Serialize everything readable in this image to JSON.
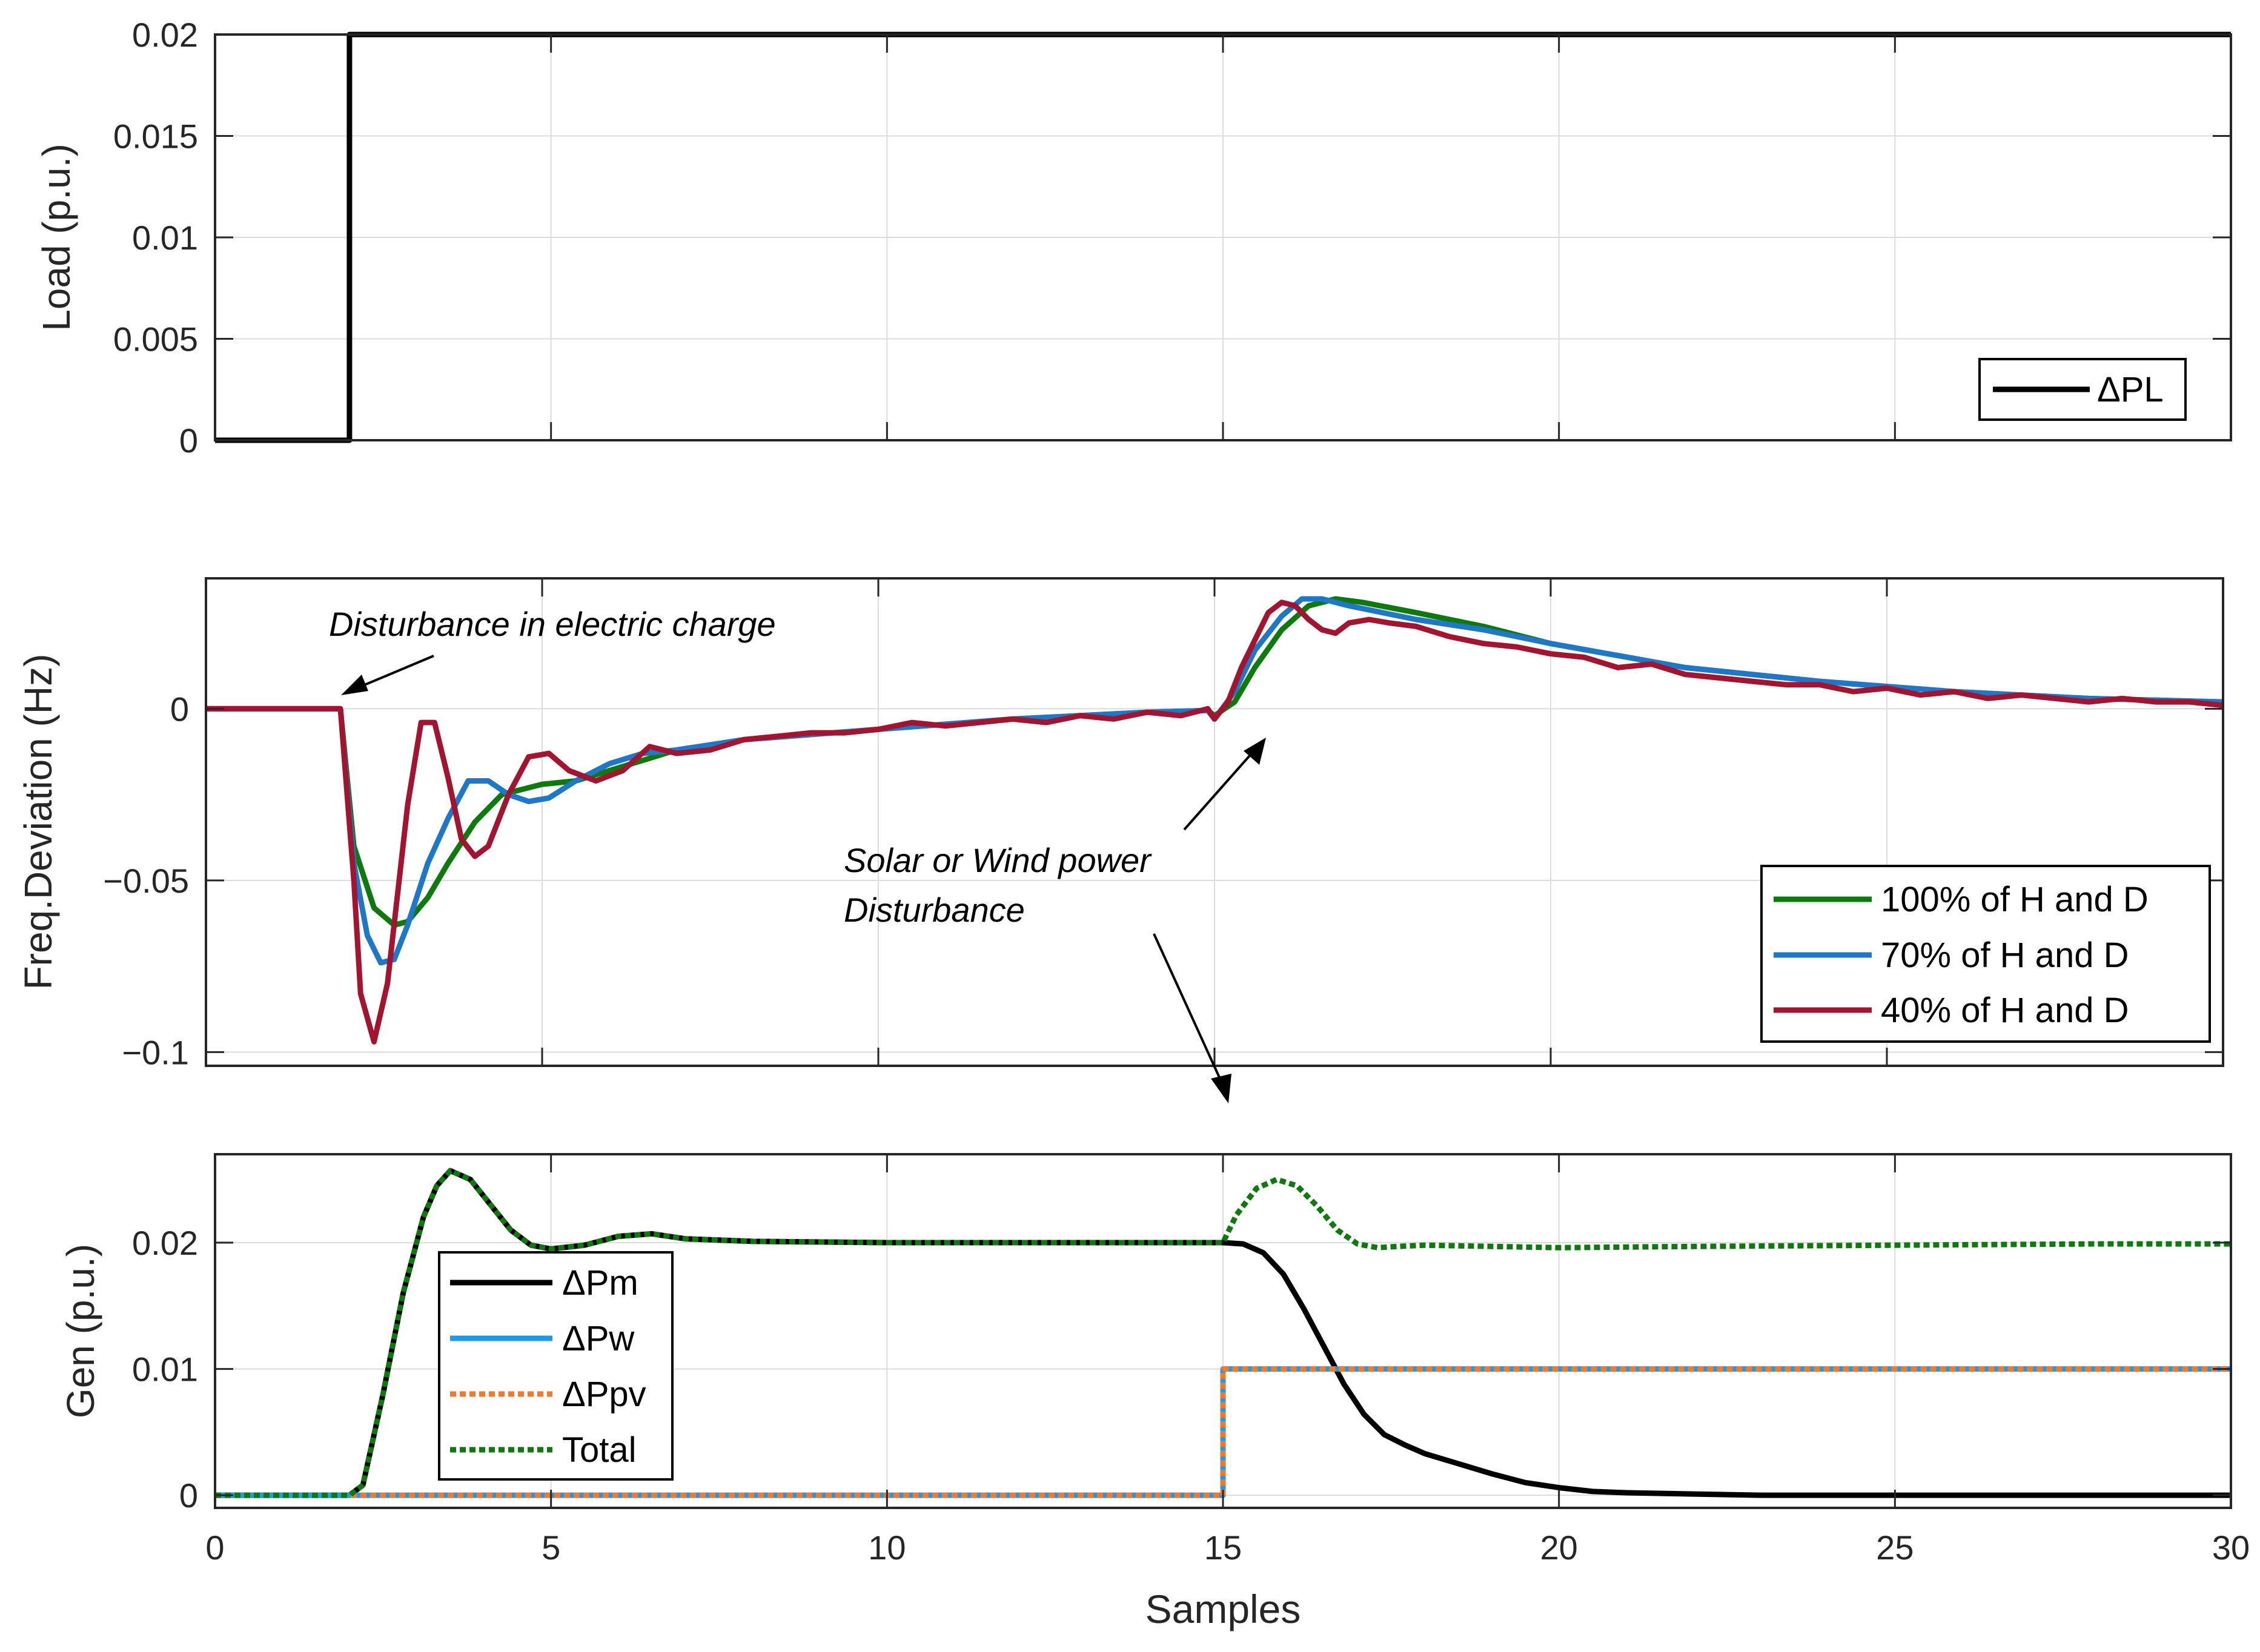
{
  "chart_data": [
    {
      "type": "line",
      "ylabel": "Load (p.u.)",
      "xlim": [
        0,
        30
      ],
      "ylim": [
        0,
        0.02
      ],
      "xticks": [
        0,
        5,
        10,
        15,
        20,
        25,
        30
      ],
      "yticks": [
        0,
        0.005,
        0.01,
        0.015,
        0.02
      ],
      "ytick_labels": [
        "0",
        "0.005",
        "0.01",
        "0.015",
        "0.02"
      ],
      "grid": true,
      "legend_position": "bottom-right",
      "series": [
        {
          "name": "ΔPL",
          "color": "#000000",
          "style": "solid",
          "x": [
            0,
            2,
            2,
            30
          ],
          "y": [
            0,
            0,
            0.02,
            0.02
          ]
        }
      ]
    },
    {
      "type": "line",
      "ylabel": "Freq.Deviation (Hz)",
      "xlim": [
        0,
        30
      ],
      "ylim": [
        -0.104,
        0.038
      ],
      "xticks": [
        0,
        5,
        10,
        15,
        20,
        25,
        30
      ],
      "yticks": [
        -0.1,
        -0.05,
        0
      ],
      "ytick_labels": [
        "−0.1",
        "−0.05",
        "0"
      ],
      "grid": true,
      "legend_position": "bottom-right",
      "annotations": [
        {
          "text": "Disturbance in electric charge"
        },
        {
          "text": "Solar or Wind power"
        },
        {
          "text": "Disturbance"
        }
      ],
      "series": [
        {
          "name": "100% of H and D",
          "color": "#0e7a0d",
          "style": "solid",
          "x": [
            0,
            1.9,
            2.0,
            2.2,
            2.5,
            2.8,
            3.0,
            3.3,
            3.6,
            4.0,
            4.4,
            5.0,
            5.5,
            6.0,
            7.0,
            8.0,
            10.0,
            12.0,
            14.0,
            14.9,
            15.0,
            15.3,
            15.6,
            16.0,
            16.4,
            16.8,
            17.2,
            18.0,
            19.0,
            20.0,
            22.0,
            24.0,
            26.0,
            28.0,
            30.0
          ],
          "y": [
            0,
            0,
            0,
            -0.04,
            -0.058,
            -0.063,
            -0.062,
            -0.055,
            -0.045,
            -0.033,
            -0.025,
            -0.022,
            -0.021,
            -0.018,
            -0.012,
            -0.009,
            -0.006,
            -0.003,
            -0.001,
            -0.0005,
            -0.002,
            0.002,
            0.012,
            0.023,
            0.03,
            0.032,
            0.031,
            0.028,
            0.024,
            0.019,
            0.012,
            0.008,
            0.005,
            0.003,
            0.002
          ]
        },
        {
          "name": "70% of H and D",
          "color": "#1f77c8",
          "style": "solid",
          "x": [
            0,
            1.9,
            2.0,
            2.2,
            2.4,
            2.6,
            2.8,
            3.0,
            3.3,
            3.6,
            3.9,
            4.2,
            4.5,
            4.8,
            5.1,
            5.5,
            6.0,
            6.5,
            7.0,
            8.0,
            10.0,
            12.0,
            14.0,
            14.9,
            15.0,
            15.3,
            15.6,
            16.0,
            16.3,
            16.6,
            17.0,
            17.5,
            18.0,
            19.0,
            20.0,
            22.0,
            24.0,
            26.0,
            28.0,
            30.0
          ],
          "y": [
            0,
            0,
            0,
            -0.045,
            -0.066,
            -0.074,
            -0.073,
            -0.063,
            -0.045,
            -0.032,
            -0.021,
            -0.021,
            -0.025,
            -0.027,
            -0.026,
            -0.021,
            -0.016,
            -0.013,
            -0.012,
            -0.009,
            -0.006,
            -0.003,
            -0.001,
            -0.0005,
            -0.003,
            0.005,
            0.017,
            0.027,
            0.032,
            0.032,
            0.03,
            0.028,
            0.026,
            0.023,
            0.019,
            0.012,
            0.008,
            0.005,
            0.003,
            0.002
          ]
        },
        {
          "name": "40% of H and D",
          "color": "#a2142f",
          "style": "solid",
          "x": [
            0,
            1.9,
            2.0,
            2.2,
            2.3,
            2.5,
            2.7,
            3.0,
            3.2,
            3.4,
            3.6,
            3.8,
            4.0,
            4.2,
            4.5,
            4.8,
            5.1,
            5.4,
            5.8,
            6.2,
            6.6,
            7.0,
            7.5,
            8.0,
            8.5,
            9.0,
            9.5,
            10.0,
            10.5,
            11.0,
            11.5,
            12.0,
            12.5,
            13.0,
            13.5,
            14.0,
            14.5,
            14.9,
            15.0,
            15.2,
            15.4,
            15.6,
            15.8,
            16.0,
            16.2,
            16.4,
            16.6,
            16.8,
            17.0,
            17.3,
            17.6,
            18.0,
            18.5,
            19.0,
            19.5,
            20.0,
            20.5,
            21.0,
            21.5,
            22.0,
            22.5,
            23.0,
            23.5,
            24.0,
            24.5,
            25.0,
            25.5,
            26.0,
            26.5,
            27.0,
            27.5,
            28.0,
            28.5,
            29.0,
            29.5,
            30.0
          ],
          "y": [
            0,
            0,
            0,
            -0.05,
            -0.083,
            -0.097,
            -0.08,
            -0.028,
            -0.004,
            -0.004,
            -0.02,
            -0.038,
            -0.043,
            -0.04,
            -0.025,
            -0.014,
            -0.013,
            -0.018,
            -0.021,
            -0.018,
            -0.011,
            -0.013,
            -0.012,
            -0.009,
            -0.008,
            -0.007,
            -0.007,
            -0.006,
            -0.004,
            -0.005,
            -0.004,
            -0.003,
            -0.004,
            -0.002,
            -0.003,
            -0.001,
            -0.002,
            0,
            -0.003,
            0.002,
            0.012,
            0.02,
            0.028,
            0.031,
            0.03,
            0.026,
            0.023,
            0.022,
            0.025,
            0.026,
            0.025,
            0.024,
            0.021,
            0.019,
            0.018,
            0.016,
            0.015,
            0.012,
            0.013,
            0.01,
            0.009,
            0.008,
            0.007,
            0.007,
            0.005,
            0.006,
            0.004,
            0.005,
            0.003,
            0.004,
            0.003,
            0.002,
            0.003,
            0.002,
            0.002,
            0.001
          ]
        }
      ]
    },
    {
      "type": "line",
      "ylabel": "Gen (p.u.)",
      "xlabel": "Samples",
      "xlim": [
        0,
        30
      ],
      "ylim": [
        -0.001,
        0.027
      ],
      "xticks": [
        0,
        5,
        10,
        15,
        20,
        25,
        30
      ],
      "xtick_labels": [
        "0",
        "5",
        "10",
        "15",
        "20",
        "25",
        "30"
      ],
      "yticks": [
        0,
        0.01,
        0.02
      ],
      "ytick_labels": [
        "0",
        "0.01",
        "0.02"
      ],
      "grid": true,
      "legend_position": "bottom-left",
      "series": [
        {
          "name": "ΔPm",
          "color": "#000000",
          "style": "solid",
          "x": [
            0,
            2.0,
            2.2,
            2.5,
            2.8,
            3.1,
            3.3,
            3.5,
            3.8,
            4.1,
            4.4,
            4.7,
            5.0,
            5.5,
            6.0,
            6.5,
            7.0,
            8.0,
            10.0,
            12.0,
            14.0,
            15.0,
            15.3,
            15.6,
            15.9,
            16.2,
            16.5,
            16.8,
            17.1,
            17.4,
            17.7,
            18.0,
            18.5,
            19.0,
            19.5,
            20.0,
            20.5,
            21.0,
            22.0,
            23.0,
            25.0,
            30.0
          ],
          "y": [
            0,
            0,
            0.0008,
            0.008,
            0.016,
            0.022,
            0.0245,
            0.0257,
            0.025,
            0.023,
            0.021,
            0.0198,
            0.0195,
            0.0198,
            0.0205,
            0.0207,
            0.0203,
            0.0201,
            0.02,
            0.02,
            0.02,
            0.02,
            0.0199,
            0.0192,
            0.0175,
            0.0148,
            0.0118,
            0.0088,
            0.0064,
            0.0048,
            0.004,
            0.0033,
            0.0025,
            0.0017,
            0.001,
            0.0006,
            0.0003,
            0.0002,
            0.0001,
            0,
            0,
            0
          ]
        },
        {
          "name": "ΔPw",
          "color": "#1e9be8",
          "style": "solid",
          "x": [
            0,
            15,
            15,
            30
          ],
          "y": [
            0,
            0,
            0.01,
            0.01
          ]
        },
        {
          "name": "ΔPpv",
          "color": "#f5792a",
          "style": "dotted",
          "x": [
            0,
            15,
            15,
            30
          ],
          "y": [
            0,
            0,
            0.01,
            0.01
          ]
        },
        {
          "name": "Total",
          "color": "#0e7a0d",
          "style": "dotted",
          "x": [
            0,
            2.0,
            2.2,
            2.5,
            2.8,
            3.1,
            3.3,
            3.5,
            3.8,
            4.1,
            4.4,
            4.7,
            5.0,
            5.5,
            6.0,
            6.5,
            7.0,
            8.0,
            10.0,
            12.0,
            14.0,
            15.0,
            15.2,
            15.5,
            15.8,
            16.1,
            16.4,
            16.7,
            17.0,
            17.3,
            17.6,
            18.0,
            19.0,
            20.0,
            22.0,
            25.0,
            28.0,
            30.0
          ],
          "y": [
            0,
            0,
            0.0008,
            0.008,
            0.016,
            0.022,
            0.0245,
            0.0257,
            0.025,
            0.023,
            0.021,
            0.0198,
            0.0195,
            0.0198,
            0.0205,
            0.0207,
            0.0203,
            0.0201,
            0.02,
            0.02,
            0.02,
            0.02,
            0.0222,
            0.0243,
            0.025,
            0.0245,
            0.0229,
            0.021,
            0.0199,
            0.0196,
            0.0197,
            0.0198,
            0.0197,
            0.0196,
            0.0197,
            0.0198,
            0.0199,
            0.0199
          ]
        }
      ]
    }
  ]
}
